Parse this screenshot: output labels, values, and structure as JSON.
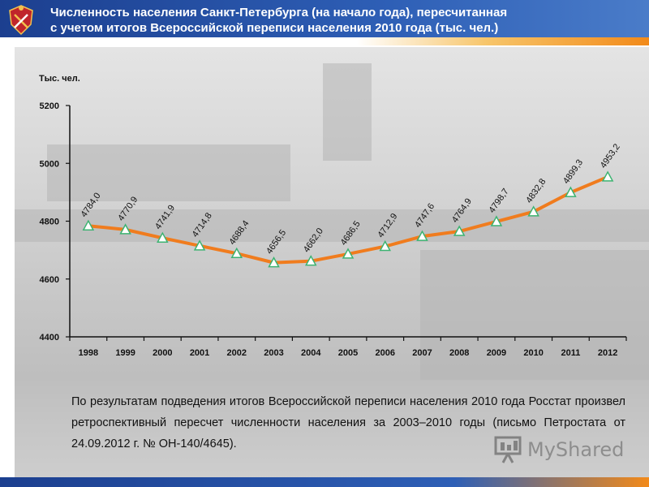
{
  "header": {
    "title_line1": "Численность населения Санкт-Петербурга (на начало года), пересчитанная",
    "title_line2": "с учетом итогов Всероссийской переписи населения 2010 года  (тыс. чел.)",
    "accent_color": "#1c3f8f",
    "stripe_color": "#f28a1a"
  },
  "chart_data": {
    "type": "line",
    "title": "",
    "ylabel": "Тыс. чел.",
    "xlabel": "",
    "ylim": [
      4400,
      5200
    ],
    "yticks": [
      "4400",
      "4600",
      "4800",
      "5000",
      "5200"
    ],
    "categories": [
      "1998",
      "1999",
      "2000",
      "2001",
      "2002",
      "2003",
      "2004",
      "2005",
      "2006",
      "2007",
      "2008",
      "2009",
      "2010",
      "2011",
      "2012"
    ],
    "values": [
      4784.0,
      4770.9,
      4741.9,
      4714.8,
      4688.4,
      4656.5,
      4662.0,
      4686.5,
      4712.9,
      4747.6,
      4764.9,
      4798.7,
      4832.8,
      4899.3,
      4953.2
    ],
    "data_labels": [
      "4784,0",
      "4770,9",
      "4741,9",
      "4714,8",
      "4688,4",
      "4656,5",
      "4662,0",
      "4686,5",
      "4712,9",
      "4747,6",
      "4764,9",
      "4798,7",
      "4832,8",
      "4899,3",
      "4953,2"
    ],
    "line_color": "#f07c1e",
    "marker_color": "#3cb371",
    "grid": false,
    "legend": "none"
  },
  "caption": {
    "text": "По результатам подведения итогов Всероссийской переписи населения 2010 года Росстат произвел ретроспективный пересчет численности населения за 2003–2010 годы (письмо Петростата от 24.09.2012 г. № ОН-140/4645)."
  },
  "watermark": {
    "text": "MyShared",
    "icon": "presentation-board-icon"
  },
  "emblem": {
    "icon": "city-coat-of-arms-icon"
  }
}
